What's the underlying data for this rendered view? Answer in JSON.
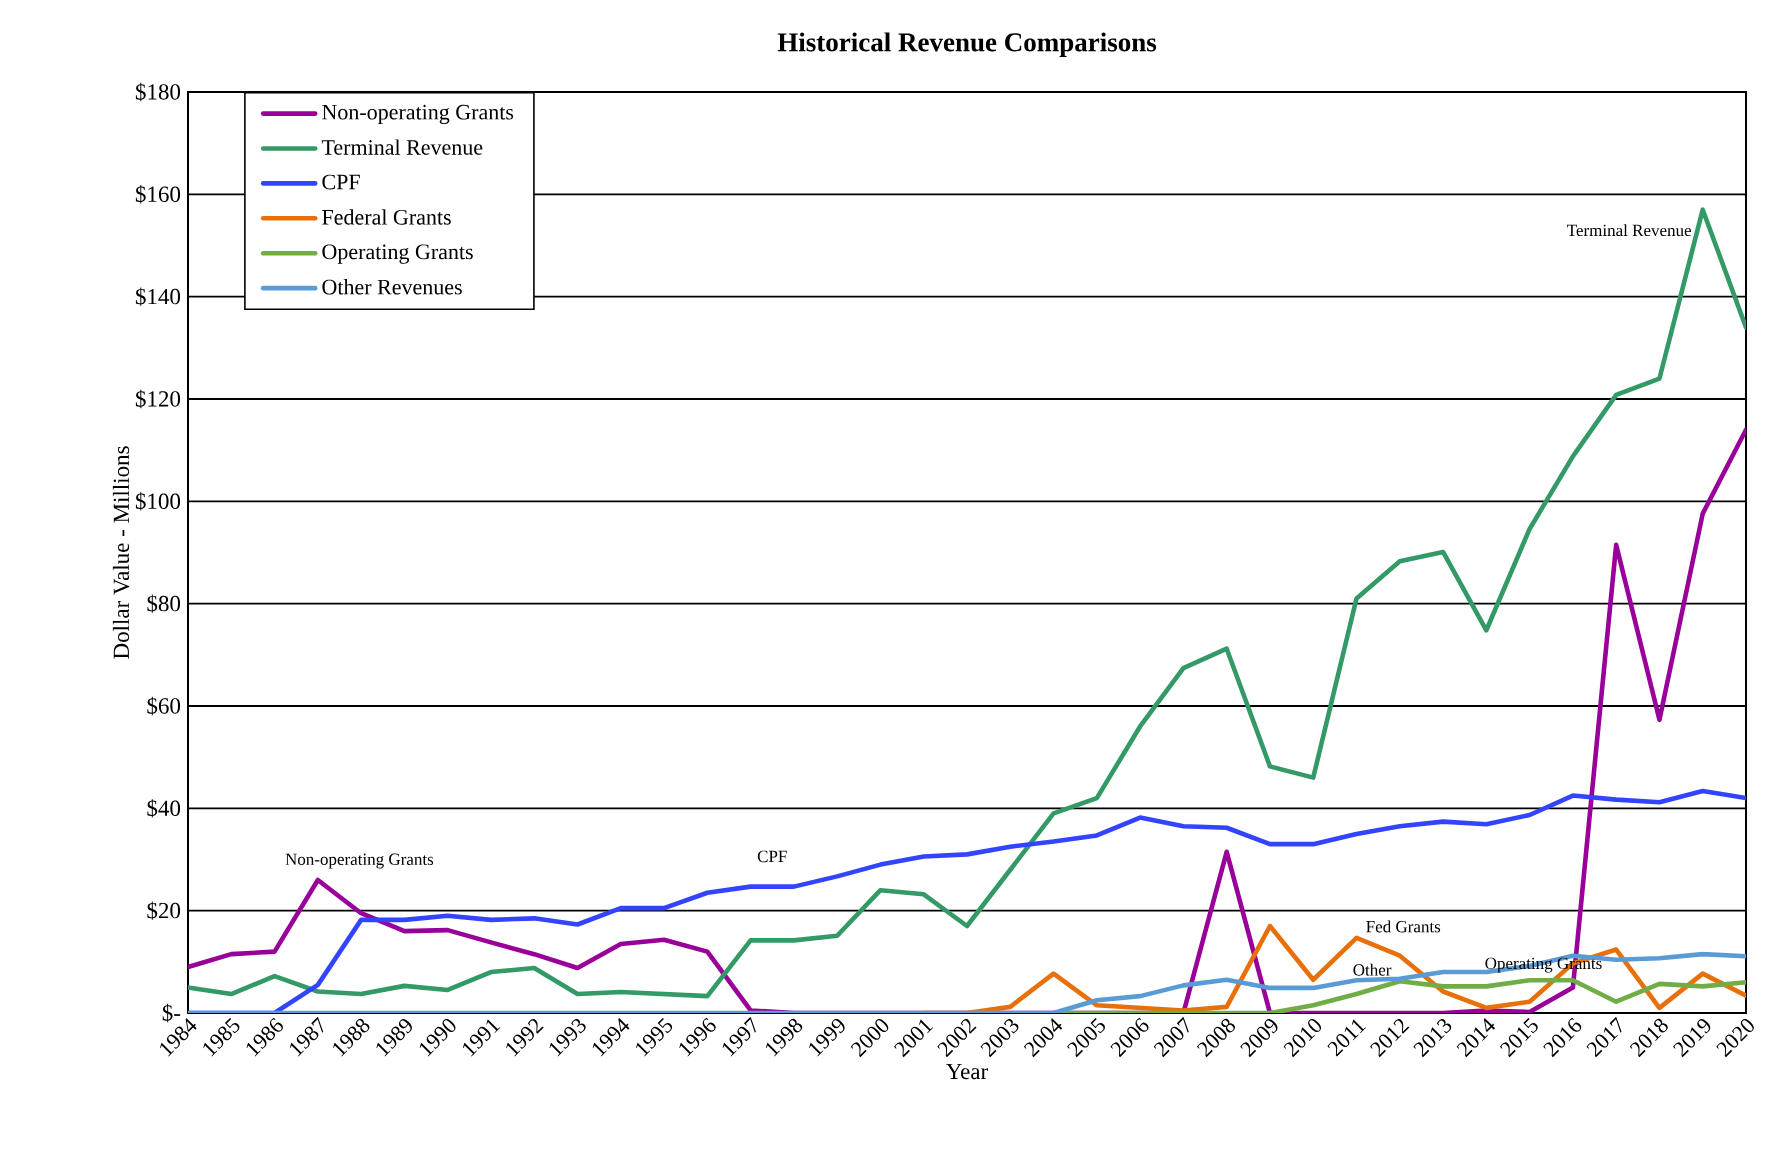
{
  "chart_data": {
    "type": "line",
    "title": "Historical  Revenue Comparisons",
    "xlabel": "Year",
    "ylabel": "Dollar Value - Millions",
    "x": [
      1984,
      1985,
      1986,
      1987,
      1988,
      1989,
      1990,
      1991,
      1992,
      1993,
      1994,
      1995,
      1996,
      1997,
      1998,
      1999,
      2000,
      2001,
      2002,
      2003,
      2004,
      2005,
      2006,
      2007,
      2008,
      2009,
      2010,
      2011,
      2012,
      2013,
      2014,
      2015,
      2016,
      2017,
      2018,
      2019,
      2020
    ],
    "xlim": [
      1984,
      2020
    ],
    "xticks": [
      1984,
      1985,
      1986,
      1987,
      1988,
      1989,
      1990,
      1991,
      1992,
      1993,
      1994,
      1995,
      1996,
      1997,
      1998,
      1999,
      2000,
      2001,
      2002,
      2003,
      2004,
      2005,
      2006,
      2007,
      2008,
      2009,
      2010,
      2011,
      2012,
      2013,
      2014,
      2015,
      2016,
      2017,
      2018,
      2019,
      2020
    ],
    "ylim": [
      0,
      180
    ],
    "yticks": [
      {
        "value": 0,
        "label": "$-"
      },
      {
        "value": 20,
        "label": "$20"
      },
      {
        "value": 40,
        "label": "$40"
      },
      {
        "value": 60,
        "label": "$60"
      },
      {
        "value": 80,
        "label": "$80"
      },
      {
        "value": 100,
        "label": "$100"
      },
      {
        "value": 120,
        "label": "$120"
      },
      {
        "value": 140,
        "label": "$140"
      },
      {
        "value": 160,
        "label": "$160"
      },
      {
        "value": 180,
        "label": "$180"
      }
    ],
    "series": [
      {
        "name": "Non-operating Grants",
        "color": "#990099",
        "values": [
          9,
          11.5,
          12,
          26,
          19.5,
          16,
          16.2,
          13.8,
          11.5,
          8.8,
          13.5,
          14.3,
          12,
          0.5,
          0,
          0,
          0,
          0,
          0,
          0,
          0,
          0,
          0,
          0,
          31.5,
          0,
          0,
          0,
          0,
          0,
          0.5,
          0.2,
          5,
          91.5,
          57.3,
          97.6,
          114
        ]
      },
      {
        "name": "Terminal Revenue",
        "color": "#339966",
        "values": [
          5,
          3.7,
          7.2,
          4.2,
          3.7,
          5.3,
          4.5,
          8,
          8.8,
          3.7,
          4.1,
          3.7,
          3.3,
          14.2,
          14.2,
          15.1,
          24,
          23.2,
          17,
          28,
          39,
          42,
          56,
          67.4,
          71.2,
          48.2,
          46,
          81,
          88.3,
          90.1,
          74.8,
          94.6,
          108.8,
          120.8,
          124,
          157,
          134
        ]
      },
      {
        "name": "CPF",
        "color": "#3344ff",
        "values": [
          0,
          0,
          0,
          5.5,
          18.2,
          18.2,
          19,
          18.2,
          18.5,
          17.3,
          20.5,
          20.5,
          23.5,
          24.7,
          24.7,
          26.7,
          29,
          30.6,
          31,
          32.5,
          33.5,
          34.7,
          38.2,
          36.5,
          36.2,
          33,
          33,
          35,
          36.5,
          37.4,
          36.9,
          38.7,
          42.5,
          41.7,
          41.2,
          43.4,
          42
        ]
      },
      {
        "name": "Federal Grants",
        "color": "#e8700a",
        "values": [
          null,
          null,
          null,
          null,
          null,
          null,
          null,
          null,
          null,
          null,
          null,
          null,
          null,
          null,
          null,
          null,
          null,
          0,
          0,
          1.2,
          7.7,
          1.5,
          1,
          0.5,
          1.2,
          17,
          6.5,
          14.7,
          11.2,
          4.2,
          1,
          2.2,
          9.7,
          12.4,
          1,
          7.7,
          3.4
        ]
      },
      {
        "name": "Operating Grants",
        "color": "#70ad47",
        "values": [
          null,
          null,
          null,
          null,
          null,
          null,
          null,
          null,
          null,
          null,
          null,
          null,
          null,
          null,
          null,
          null,
          null,
          null,
          null,
          null,
          0,
          0,
          0,
          0,
          0,
          0,
          1.5,
          3.7,
          6.2,
          5.2,
          5.2,
          6.4,
          6.4,
          2.2,
          5.7,
          5.2,
          6
        ]
      },
      {
        "name": "Other Revenues",
        "color": "#5b9bd5",
        "values": [
          0,
          0,
          0,
          0,
          0,
          0,
          0,
          0,
          0,
          0,
          0,
          0,
          0,
          0,
          0,
          0,
          0,
          0,
          0,
          0,
          0,
          2.5,
          3.3,
          5.4,
          6.5,
          4.9,
          4.9,
          6.4,
          6.7,
          8,
          8,
          9.2,
          11.2,
          10.4,
          10.7,
          11.5,
          11.1
        ]
      }
    ],
    "annotations": [
      "Non-operating Grants",
      "CPF",
      "Terminal Revenue",
      "Fed Grants",
      "Other",
      "Operating Grants"
    ],
    "grid": "y",
    "legend": "top left",
    "line_style": "solid"
  }
}
